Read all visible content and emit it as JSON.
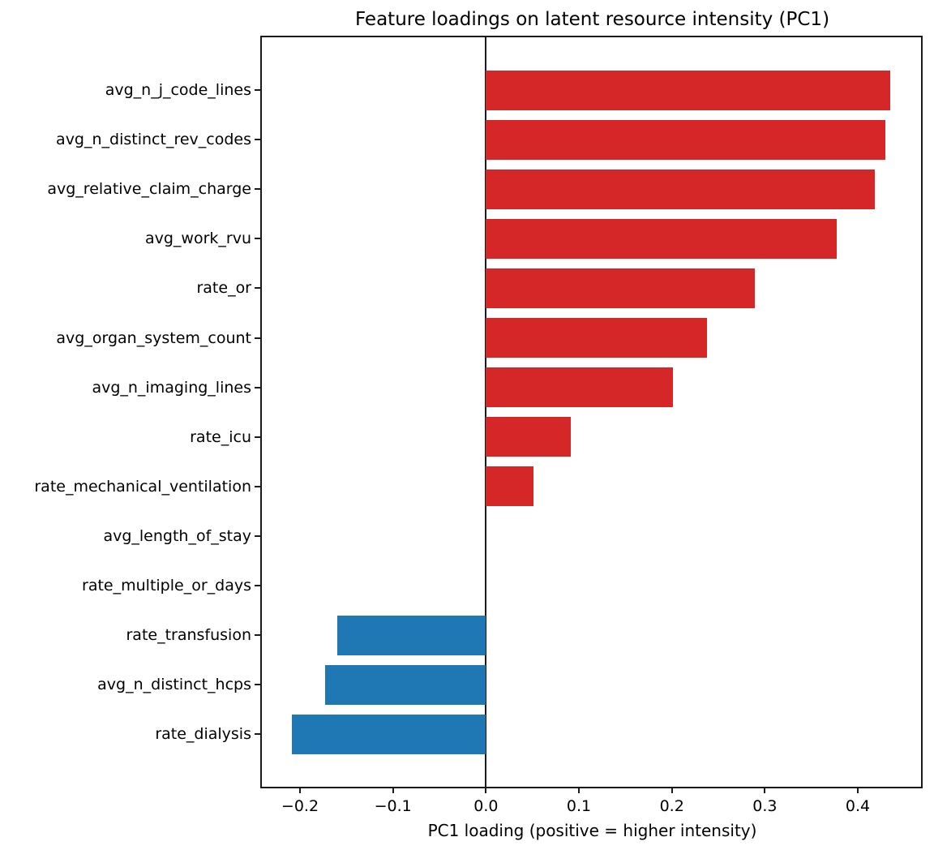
{
  "chart_data": {
    "type": "bar",
    "orientation": "horizontal",
    "title": "Feature loadings on latent resource intensity (PC1)",
    "xlabel": "PC1 loading (positive = higher intensity)",
    "ylabel": "",
    "categories": [
      "avg_n_j_code_lines",
      "avg_n_distinct_rev_codes",
      "avg_relative_claim_charge",
      "avg_work_rvu",
      "rate_or",
      "avg_organ_system_count",
      "avg_n_imaging_lines",
      "rate_icu",
      "rate_mechanical_ventilation",
      "avg_length_of_stay",
      "rate_multiple_or_days",
      "rate_transfusion",
      "avg_n_distinct_hcps",
      "rate_dialysis"
    ],
    "values": [
      0.435,
      0.43,
      0.418,
      0.377,
      0.289,
      0.238,
      0.201,
      0.091,
      0.051,
      0.0,
      0.0,
      -0.16,
      -0.173,
      -0.209
    ],
    "positive_color": "#d62728",
    "negative_color": "#1f77b4",
    "xlim": [
      -0.241,
      0.468
    ],
    "xtick_values": [
      -0.2,
      -0.1,
      0.0,
      0.1,
      0.2,
      0.3,
      0.4
    ],
    "xtick_labels": [
      "−0.2",
      "−0.1",
      "0.0",
      "0.1",
      "0.2",
      "0.3",
      "0.4"
    ],
    "zero_line": true,
    "grid": false,
    "legend_position": "none"
  }
}
